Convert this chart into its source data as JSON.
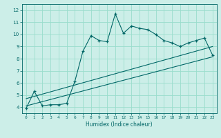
{
  "title": "",
  "xlabel": "Humidex (Indice chaleur)",
  "bg_color": "#cceee8",
  "line_color": "#006666",
  "grid_color": "#99ddcc",
  "xlim": [
    -0.5,
    23.5
  ],
  "ylim": [
    3.5,
    12.5
  ],
  "xticks": [
    0,
    1,
    2,
    3,
    4,
    5,
    6,
    7,
    8,
    9,
    10,
    11,
    12,
    13,
    14,
    15,
    16,
    17,
    18,
    19,
    20,
    21,
    22,
    23
  ],
  "yticks": [
    4,
    5,
    6,
    7,
    8,
    9,
    10,
    11,
    12
  ],
  "curve_x": [
    0,
    1,
    2,
    3,
    4,
    5,
    6,
    7,
    8,
    9,
    10,
    11,
    12,
    13,
    14,
    15,
    16,
    17,
    18,
    19,
    20,
    21,
    22,
    23
  ],
  "curve_y": [
    3.9,
    5.3,
    4.1,
    4.2,
    4.2,
    4.3,
    6.1,
    8.6,
    9.9,
    9.5,
    9.4,
    11.7,
    10.1,
    10.7,
    10.5,
    10.4,
    10.0,
    9.5,
    9.3,
    9.0,
    9.3,
    9.5,
    9.7,
    8.3
  ],
  "line1_x": [
    0,
    23
  ],
  "line1_y": [
    4.1,
    8.15
  ],
  "line2_x": [
    0,
    23
  ],
  "line2_y": [
    4.7,
    9.0
  ],
  "xlabel_fontsize": 5.5,
  "tick_fontsize_x": 4.2,
  "tick_fontsize_y": 5.2
}
